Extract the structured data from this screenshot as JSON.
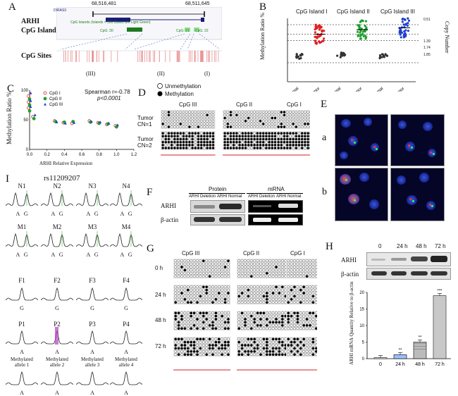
{
  "panels": {
    "A": {
      "label": "A",
      "coord_left": "68,516,481",
      "coord_right": "68,511,645",
      "row_labels": [
        "ARHI",
        "CpG Island",
        "CpG Sites"
      ],
      "track_text": [
        "DIRAS3",
        "CpG Islands (Islands < 300 Bases are Light Green)",
        "CpG: 30",
        "CpG: 21",
        "CpG: 22"
      ],
      "site_labels": [
        "(III)",
        "(II)",
        "(I)"
      ]
    },
    "B": {
      "label": "B",
      "group_headers": [
        "CpG Island I",
        "CpG Island II",
        "CpG Island III"
      ],
      "ylabel": "Methylation Ratio %",
      "right_label": "Copy Number",
      "right_ticks": [
        "0.51",
        "1.39",
        "1.74",
        "1.85"
      ],
      "xticks": [
        "Normal",
        "Tumor",
        "Normal",
        "Tumor",
        "Normal",
        "Tumor"
      ]
    },
    "C": {
      "label": "C",
      "legend": [
        "CpG I",
        "CpG II",
        "CpG III"
      ],
      "stat1": "Spearman r=-0.78",
      "stat2": "p<0.0001",
      "ylabel": "Methylation Ratio %",
      "xlabel": "ARHI Relative Expression",
      "xticks": [
        "0.0",
        "0.2",
        "0.4",
        "0.6",
        "0.8",
        "1.0",
        "1.2"
      ],
      "yticks": [
        "0",
        "50",
        "100"
      ]
    },
    "D": {
      "label": "D",
      "legend": [
        "Unmethylation",
        "Methylation"
      ],
      "col_headers": [
        "CpG III",
        "CpG II",
        "CpG I"
      ],
      "row_labels": [
        "Tumor CN=1",
        "Tumor CN=2"
      ]
    },
    "E": {
      "label": "E",
      "row_labels": [
        "a",
        "b"
      ]
    },
    "F": {
      "label": "F",
      "group_headers": [
        "Protein",
        "mRNA"
      ],
      "lane_labels": [
        "ARHI Deletion",
        "ARHI Normal",
        "ARHI Deletion",
        "ARHI Normal"
      ],
      "row_labels": [
        "ARHI",
        "β-actin"
      ]
    },
    "G": {
      "label": "G",
      "col_headers": [
        "CpG III",
        "CpG II",
        "CpG I"
      ],
      "row_labels": [
        "0 h",
        "24 h",
        "48 h",
        "72 h"
      ]
    },
    "H": {
      "label": "H",
      "time_labels": [
        "0",
        "24 h",
        "48 h",
        "72 h"
      ],
      "row_labels": [
        "ARHI",
        "β-actin"
      ],
      "ylabel": "ARHI mRNA Quantity Relative to β-actin",
      "yticks": [
        "0",
        "5",
        "10",
        "15",
        "20"
      ],
      "sig": [
        "**",
        "**",
        "***"
      ]
    },
    "I": {
      "label": "I",
      "title": "rs11209207",
      "row1": [
        "N1",
        "N2",
        "N3",
        "N4"
      ],
      "row1_alleles": [
        "A   G",
        "A   G",
        "A   G",
        "A   G"
      ],
      "row2": [
        "M1",
        "M2",
        "M3",
        "M4"
      ],
      "row2_alleles": [
        "A   G",
        "A   G",
        "A   G",
        "A   G"
      ],
      "row3": [
        "F1",
        "F2",
        "F3",
        "F4"
      ],
      "row3_alleles": [
        "G",
        "G",
        "G",
        "G"
      ],
      "row4": [
        "P1",
        "P2",
        "P3",
        "P4"
      ],
      "row4_alleles": [
        "A",
        "A",
        "A",
        "A"
      ],
      "row5": [
        "Methylated allele 1",
        "Methylated allele 2",
        "Methylated allele 3",
        "Methylated allele 4"
      ],
      "row5_alleles": [
        "A",
        "A",
        "A",
        "A"
      ]
    }
  },
  "chart_data": [
    {
      "type": "scatter",
      "panel": "B",
      "ylabel": "Methylation Ratio %",
      "categories": [
        "Normal",
        "Tumor",
        "Normal",
        "Tumor",
        "Normal",
        "Tumor"
      ],
      "series": [
        {
          "name": "CpG Island I",
          "normal_mean": 40,
          "tumor_mean": 75,
          "color": "#e02020"
        },
        {
          "name": "CpG Island II",
          "normal_mean": 42,
          "tumor_mean": 82,
          "color": "#20a030"
        },
        {
          "name": "CpG Island III",
          "normal_mean": 40,
          "tumor_mean": 85,
          "color": "#2040d0"
        }
      ]
    },
    {
      "type": "scatter",
      "panel": "C",
      "xlabel": "ARHI Relative Expression",
      "ylabel": "Methylation Ratio %",
      "xlim": [
        0,
        1.2
      ],
      "ylim": [
        0,
        100
      ],
      "series": [
        {
          "name": "CpG I",
          "color": "#e02020",
          "x": [
            0.0,
            0.0,
            0.0,
            0.05,
            0.3,
            0.4,
            0.5,
            0.7,
            0.8,
            0.9,
            1.0
          ],
          "y": [
            90,
            80,
            70,
            55,
            48,
            45,
            44,
            48,
            45,
            42,
            40
          ]
        },
        {
          "name": "CpG II",
          "color": "#20a030",
          "x": [
            0.0,
            0.0,
            0.0,
            0.05,
            0.3,
            0.4,
            0.5,
            0.7,
            0.8,
            0.9,
            1.0
          ],
          "y": [
            85,
            75,
            65,
            52,
            47,
            46,
            47,
            46,
            44,
            43,
            38
          ]
        },
        {
          "name": "CpG III",
          "color": "#2040d0",
          "x": [
            0.0,
            0.0,
            0.0,
            0.05,
            0.3,
            0.4,
            0.5,
            0.7,
            0.8,
            0.9,
            1.0
          ],
          "y": [
            95,
            82,
            72,
            58,
            46,
            44,
            45,
            47,
            46,
            44,
            41
          ]
        }
      ]
    },
    {
      "type": "bar",
      "panel": "H",
      "categories": [
        "0",
        "24 h",
        "48 h",
        "72 h"
      ],
      "values": [
        0.3,
        1.2,
        5.0,
        19.0
      ],
      "ylim": [
        0,
        20
      ],
      "ylabel": "ARHI mRNA Quantity Relative to β-actin"
    }
  ]
}
